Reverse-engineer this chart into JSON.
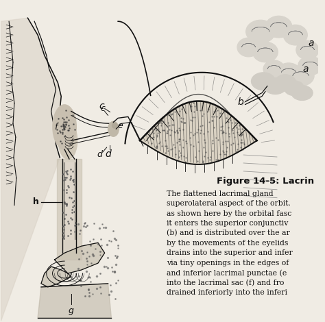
{
  "bg_color": "#f0ece4",
  "title": "Figure 14-5: Lacrin",
  "title_fontsize": 9.5,
  "body_text_lines": [
    "The flattened lacrimal gland",
    "superolateral aspect of the orbit.",
    "as shown here by the orbital fasc",
    "it enters the superior conjunctiv",
    "(b) and is distributed over the ar",
    "by the movements of the eyelids",
    "drains into the superior and infer",
    "via tiny openings in the edges of",
    "and inferior lacrimal punctae (e",
    "into the lacrimal sac (f) and fro",
    "drained inferiorly into the inferi"
  ],
  "body_fontsize": 7.8,
  "label_fontsize": 9,
  "lc": "#111111",
  "lc_light": "#555555"
}
